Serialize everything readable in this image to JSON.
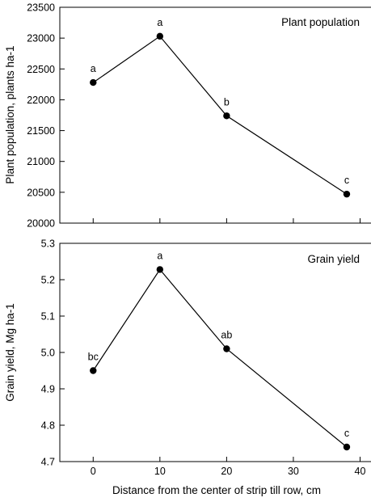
{
  "chart_data": [
    {
      "type": "line",
      "title": "Plant population",
      "xlabel": "",
      "ylabel": "Plant population, plants ha-1",
      "xlim": [
        -5,
        42
      ],
      "ylim": [
        20000,
        23500
      ],
      "yticks": [
        "20000",
        "20500",
        "21000",
        "21500",
        "22000",
        "22500",
        "23000",
        "23500"
      ],
      "xticks": [],
      "grid": false,
      "series": [
        {
          "x": [
            0,
            10,
            20,
            38
          ],
          "y": [
            22280,
            23030,
            21740,
            20470
          ],
          "labels": [
            "a",
            "a",
            "b",
            "c"
          ]
        }
      ]
    },
    {
      "type": "line",
      "title": "Grain yield",
      "xlabel": "Distance from the center of strip till row, cm",
      "ylabel": "Grain yield, Mg ha-1",
      "xlim": [
        -5,
        42
      ],
      "ylim": [
        4.7,
        5.3
      ],
      "yticks": [
        "4.7",
        "4.8",
        "4.9",
        "5.0",
        "5.1",
        "5.2",
        "5.3"
      ],
      "xticks": [
        "0",
        "10",
        "20",
        "30",
        "40"
      ],
      "grid": false,
      "series": [
        {
          "x": [
            0,
            10,
            20,
            38
          ],
          "y": [
            4.95,
            5.228,
            5.01,
            4.74
          ],
          "labels": [
            "bc",
            "a",
            "ab",
            "c"
          ]
        }
      ]
    }
  ]
}
